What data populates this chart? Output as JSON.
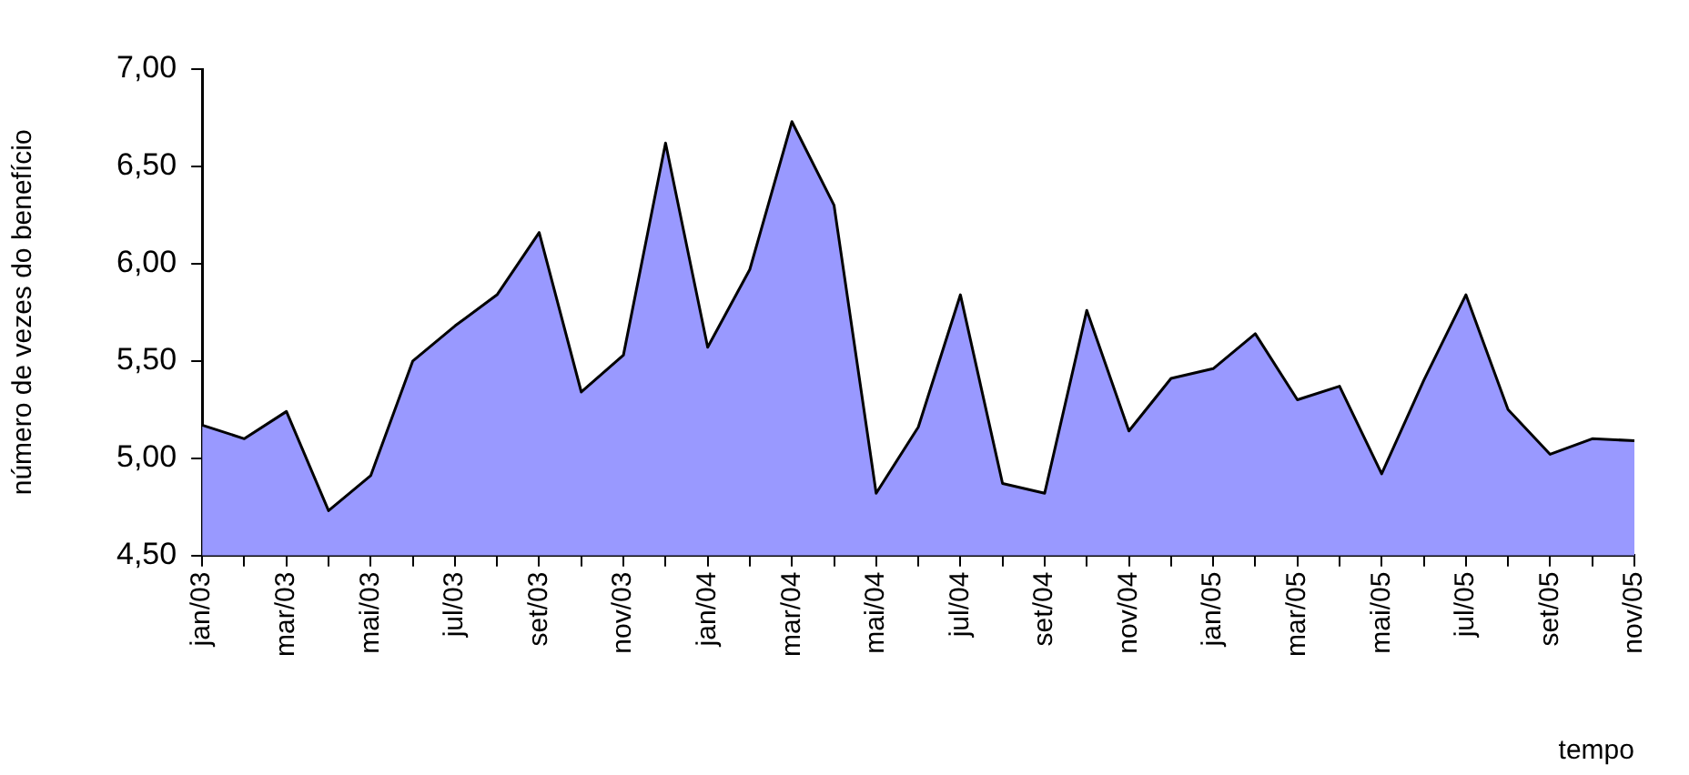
{
  "chart_data": {
    "type": "area",
    "xlabel": "tempo",
    "ylabel": "número de vezes do benefício",
    "categories": [
      "jan/03",
      null,
      "mar/03",
      null,
      "mai/03",
      null,
      "jul/03",
      null,
      "set/03",
      null,
      "nov/03",
      null,
      "jan/04",
      null,
      "mar/04",
      null,
      "mai/04",
      null,
      "jul/04",
      null,
      "set/04",
      null,
      "nov/04",
      null,
      "jan/05",
      null,
      "mar/05",
      null,
      "mai/05",
      null,
      "jul/05",
      null,
      "set/05",
      null,
      "nov/05"
    ],
    "series": [
      {
        "color": "#9999ff",
        "values": [
          5.17,
          5.1,
          5.24,
          4.73,
          4.91,
          5.5,
          5.68,
          5.84,
          6.16,
          5.34,
          5.53,
          6.62,
          5.57,
          5.97,
          6.73,
          6.3,
          4.82,
          5.16,
          5.84,
          4.87,
          4.82,
          5.76,
          5.14,
          5.41,
          5.46,
          5.64,
          5.3,
          5.37,
          4.92,
          5.4,
          5.84,
          5.25,
          5.02,
          5.1,
          5.09
        ]
      }
    ],
    "ylim": [
      4.5,
      7
    ],
    "yticks": [
      {
        "value": 4.5,
        "label": "4,50"
      },
      {
        "value": 5,
        "label": "5,00"
      },
      {
        "value": 5.5,
        "label": "5,50"
      },
      {
        "value": 6,
        "label": "6,00"
      },
      {
        "value": 6.5,
        "label": "6,50"
      },
      {
        "value": 7,
        "label": "7,00"
      }
    ],
    "grid": false,
    "legend": false
  }
}
